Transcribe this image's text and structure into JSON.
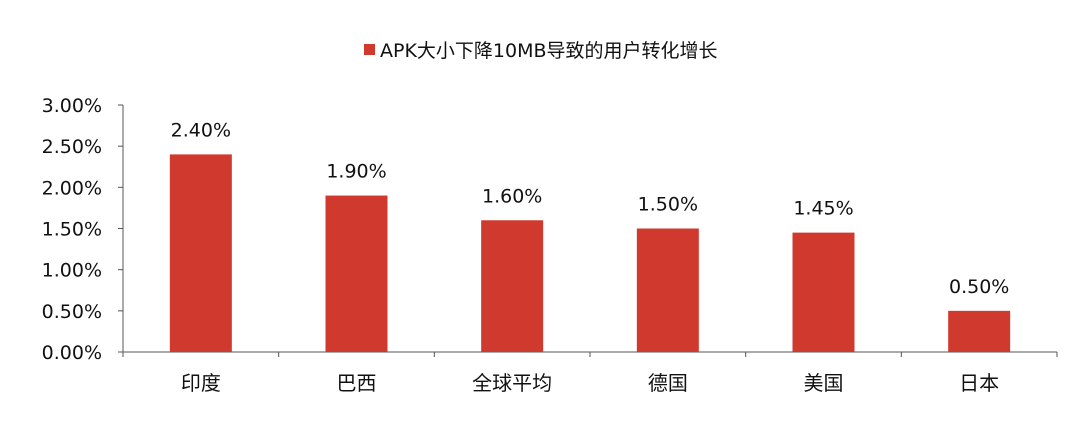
{
  "chart_data": {
    "type": "bar",
    "legend_label": "APK大小下降10MB导致的用户转化增长",
    "legend_position": "top-center",
    "categories": [
      "印度",
      "巴西",
      "全球平均",
      "德国",
      "美国",
      "日本"
    ],
    "values": [
      2.4,
      1.9,
      1.6,
      1.5,
      1.45,
      0.5
    ],
    "value_labels": [
      "2.40%",
      "1.90%",
      "1.60%",
      "1.50%",
      "1.45%",
      "0.50%"
    ],
    "y_ticks": [
      {
        "value": 0.0,
        "label": "0.00%"
      },
      {
        "value": 0.5,
        "label": "0.50%"
      },
      {
        "value": 1.0,
        "label": "1.00%"
      },
      {
        "value": 1.5,
        "label": "1.50%"
      },
      {
        "value": 2.0,
        "label": "2.00%"
      },
      {
        "value": 2.5,
        "label": "2.50%"
      },
      {
        "value": 3.0,
        "label": "3.00%"
      }
    ],
    "ylim": [
      0,
      3.0
    ],
    "grid": false,
    "color": "#d0392d"
  }
}
